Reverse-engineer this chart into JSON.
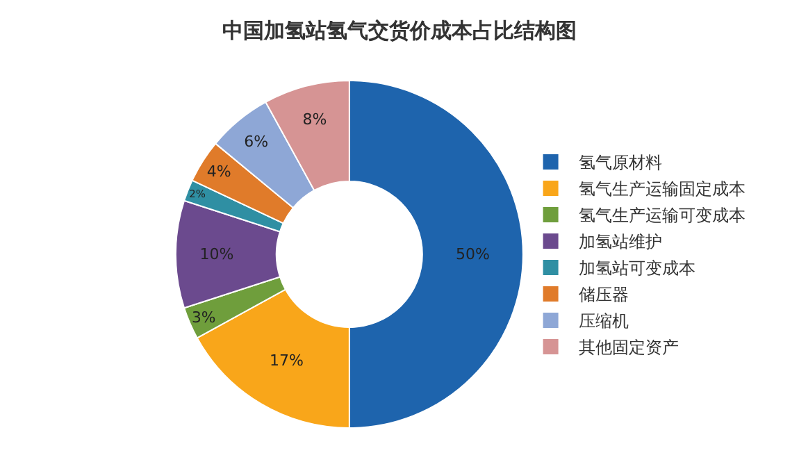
{
  "chart_data": {
    "type": "donut",
    "title": "中国加氢站氢气交货价成本占比结构图",
    "categories": [
      "氢气原材料",
      "氢气生产运输固定成本",
      "氢气生产运输可变成本",
      "加氢站维护",
      "加氢站可变成本",
      "储压器",
      "压缩机",
      "其他固定资产"
    ],
    "values": [
      50,
      17,
      3,
      10,
      2,
      4,
      6,
      8
    ],
    "value_labels": [
      "50%",
      "17%",
      "3%",
      "10%",
      "2%",
      "4%",
      "6%",
      "8%"
    ],
    "colors": [
      "#1e64ad",
      "#f9a61a",
      "#6f9e3c",
      "#6b4a8e",
      "#2f8fa3",
      "#e07b2a",
      "#8ea7d6",
      "#d69494"
    ],
    "legend": "right"
  }
}
